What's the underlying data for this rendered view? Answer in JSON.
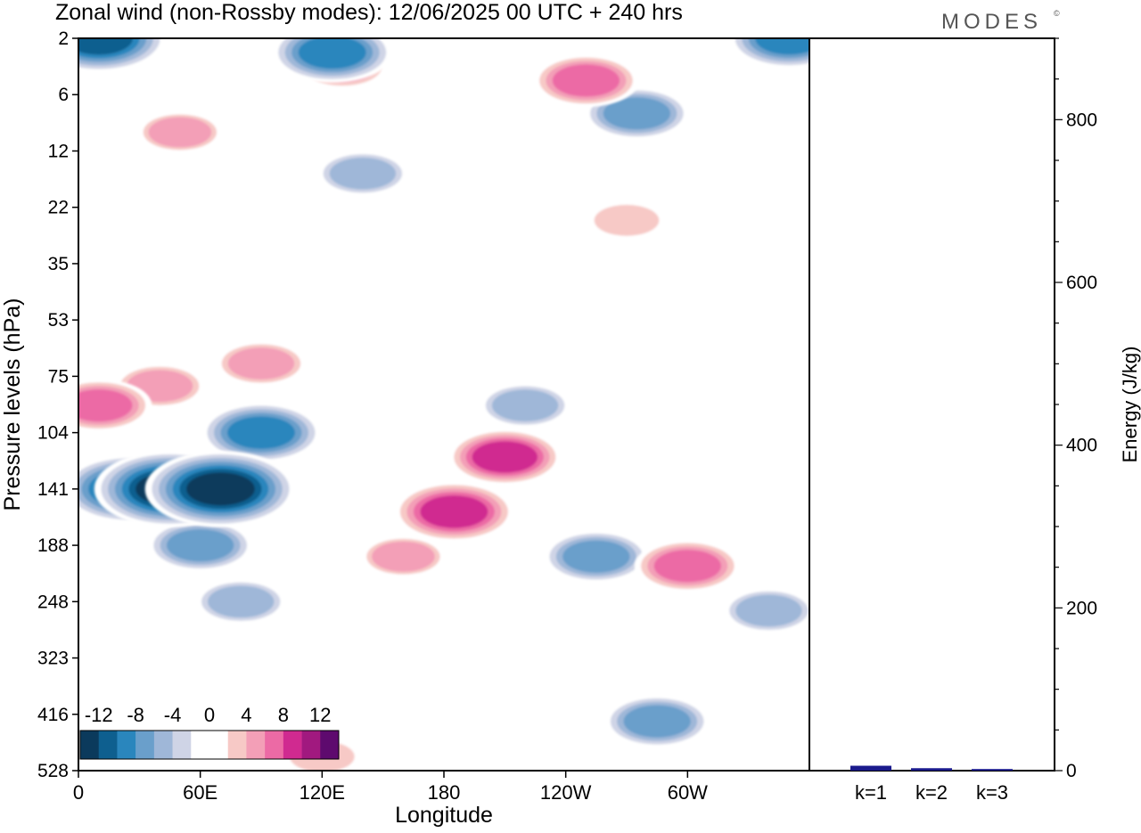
{
  "title": "Zonal wind (non-Rossby modes):  12/06/2025  00 UTC  + 240 hrs",
  "logo": "MODES",
  "logo_mark": "©",
  "colors": {
    "frame": "#000000",
    "bar": "#1a1a8c",
    "levels": [
      "#0b3a5c",
      "#0e5f8f",
      "#2a86bd",
      "#6a9fcb",
      "#9fb7d8",
      "#cfd4e6",
      "#ffffff",
      "#ffffff",
      "#f7c9c6",
      "#f39fb7",
      "#ec6aa5",
      "#d02a90",
      "#a1197f",
      "#5e0a6e"
    ]
  },
  "chart_data": [
    {
      "type": "heatmap",
      "title": "Zonal wind (non-Rossby modes):  12/06/2025  00 UTC  + 240 hrs",
      "xlabel": "Longitude",
      "ylabel": "Pressure levels (hPa)",
      "x_ticks": [
        "0",
        "60E",
        "120E",
        "180",
        "120W",
        "60W"
      ],
      "x_tick_values": [
        0,
        60,
        120,
        180,
        240,
        300
      ],
      "xlim": [
        0,
        360
      ],
      "y_ticks": [
        "2",
        "6",
        "12",
        "22",
        "35",
        "53",
        "75",
        "104",
        "141",
        "188",
        "248",
        "323",
        "416",
        "528"
      ],
      "colorbar": {
        "labels": [
          "-12",
          "-8",
          "-4",
          "0",
          "4",
          "8",
          "12"
        ],
        "bounds": [
          -14,
          -12,
          -10,
          -8,
          -6,
          -4,
          -2,
          0,
          2,
          4,
          6,
          8,
          10,
          12,
          14
        ]
      },
      "features": [
        {
          "lon": 45,
          "lev": 141,
          "value": -14
        },
        {
          "lon": 70,
          "lev": 141,
          "value": -14
        },
        {
          "lon": 25,
          "lev": 141,
          "value": -12
        },
        {
          "lon": 90,
          "lev": 104,
          "value": -10
        },
        {
          "lon": 60,
          "lev": 188,
          "value": -8
        },
        {
          "lon": 80,
          "lev": 248,
          "value": -6
        },
        {
          "lon": 10,
          "lev": 2,
          "value": -12
        },
        {
          "lon": 350,
          "lev": 2,
          "value": -10
        },
        {
          "lon": 125,
          "lev": 3,
          "value": -10
        },
        {
          "lon": 275,
          "lev": 8,
          "value": -8
        },
        {
          "lon": 140,
          "lev": 16,
          "value": -6
        },
        {
          "lon": 220,
          "lev": 90,
          "value": -6
        },
        {
          "lon": 255,
          "lev": 200,
          "value": -8
        },
        {
          "lon": 340,
          "lev": 260,
          "value": -6
        },
        {
          "lon": 285,
          "lev": 430,
          "value": -8
        },
        {
          "lon": 10,
          "lev": 90,
          "value": 8
        },
        {
          "lon": 40,
          "lev": 80,
          "value": 6
        },
        {
          "lon": 90,
          "lev": 70,
          "value": 6
        },
        {
          "lon": 185,
          "lev": 160,
          "value": 10
        },
        {
          "lon": 210,
          "lev": 120,
          "value": 9
        },
        {
          "lon": 300,
          "lev": 210,
          "value": 8
        },
        {
          "lon": 250,
          "lev": 5,
          "value": 8
        },
        {
          "lon": 130,
          "lev": 4,
          "value": 6
        },
        {
          "lon": 50,
          "lev": 10,
          "value": 5
        },
        {
          "lon": 160,
          "lev": 200,
          "value": 5
        },
        {
          "lon": 270,
          "lev": 25,
          "value": 4
        },
        {
          "lon": 120,
          "lev": 500,
          "value": 4
        }
      ]
    },
    {
      "type": "bar",
      "ylabel": "Energy (J/kg)",
      "categories": [
        "k=1",
        "k=2",
        "k=3"
      ],
      "values": [
        6,
        3,
        2
      ],
      "ylim": [
        0,
        900
      ],
      "y_ticks": [
        0,
        200,
        400,
        600,
        800
      ],
      "y_minor_step": 50
    }
  ]
}
